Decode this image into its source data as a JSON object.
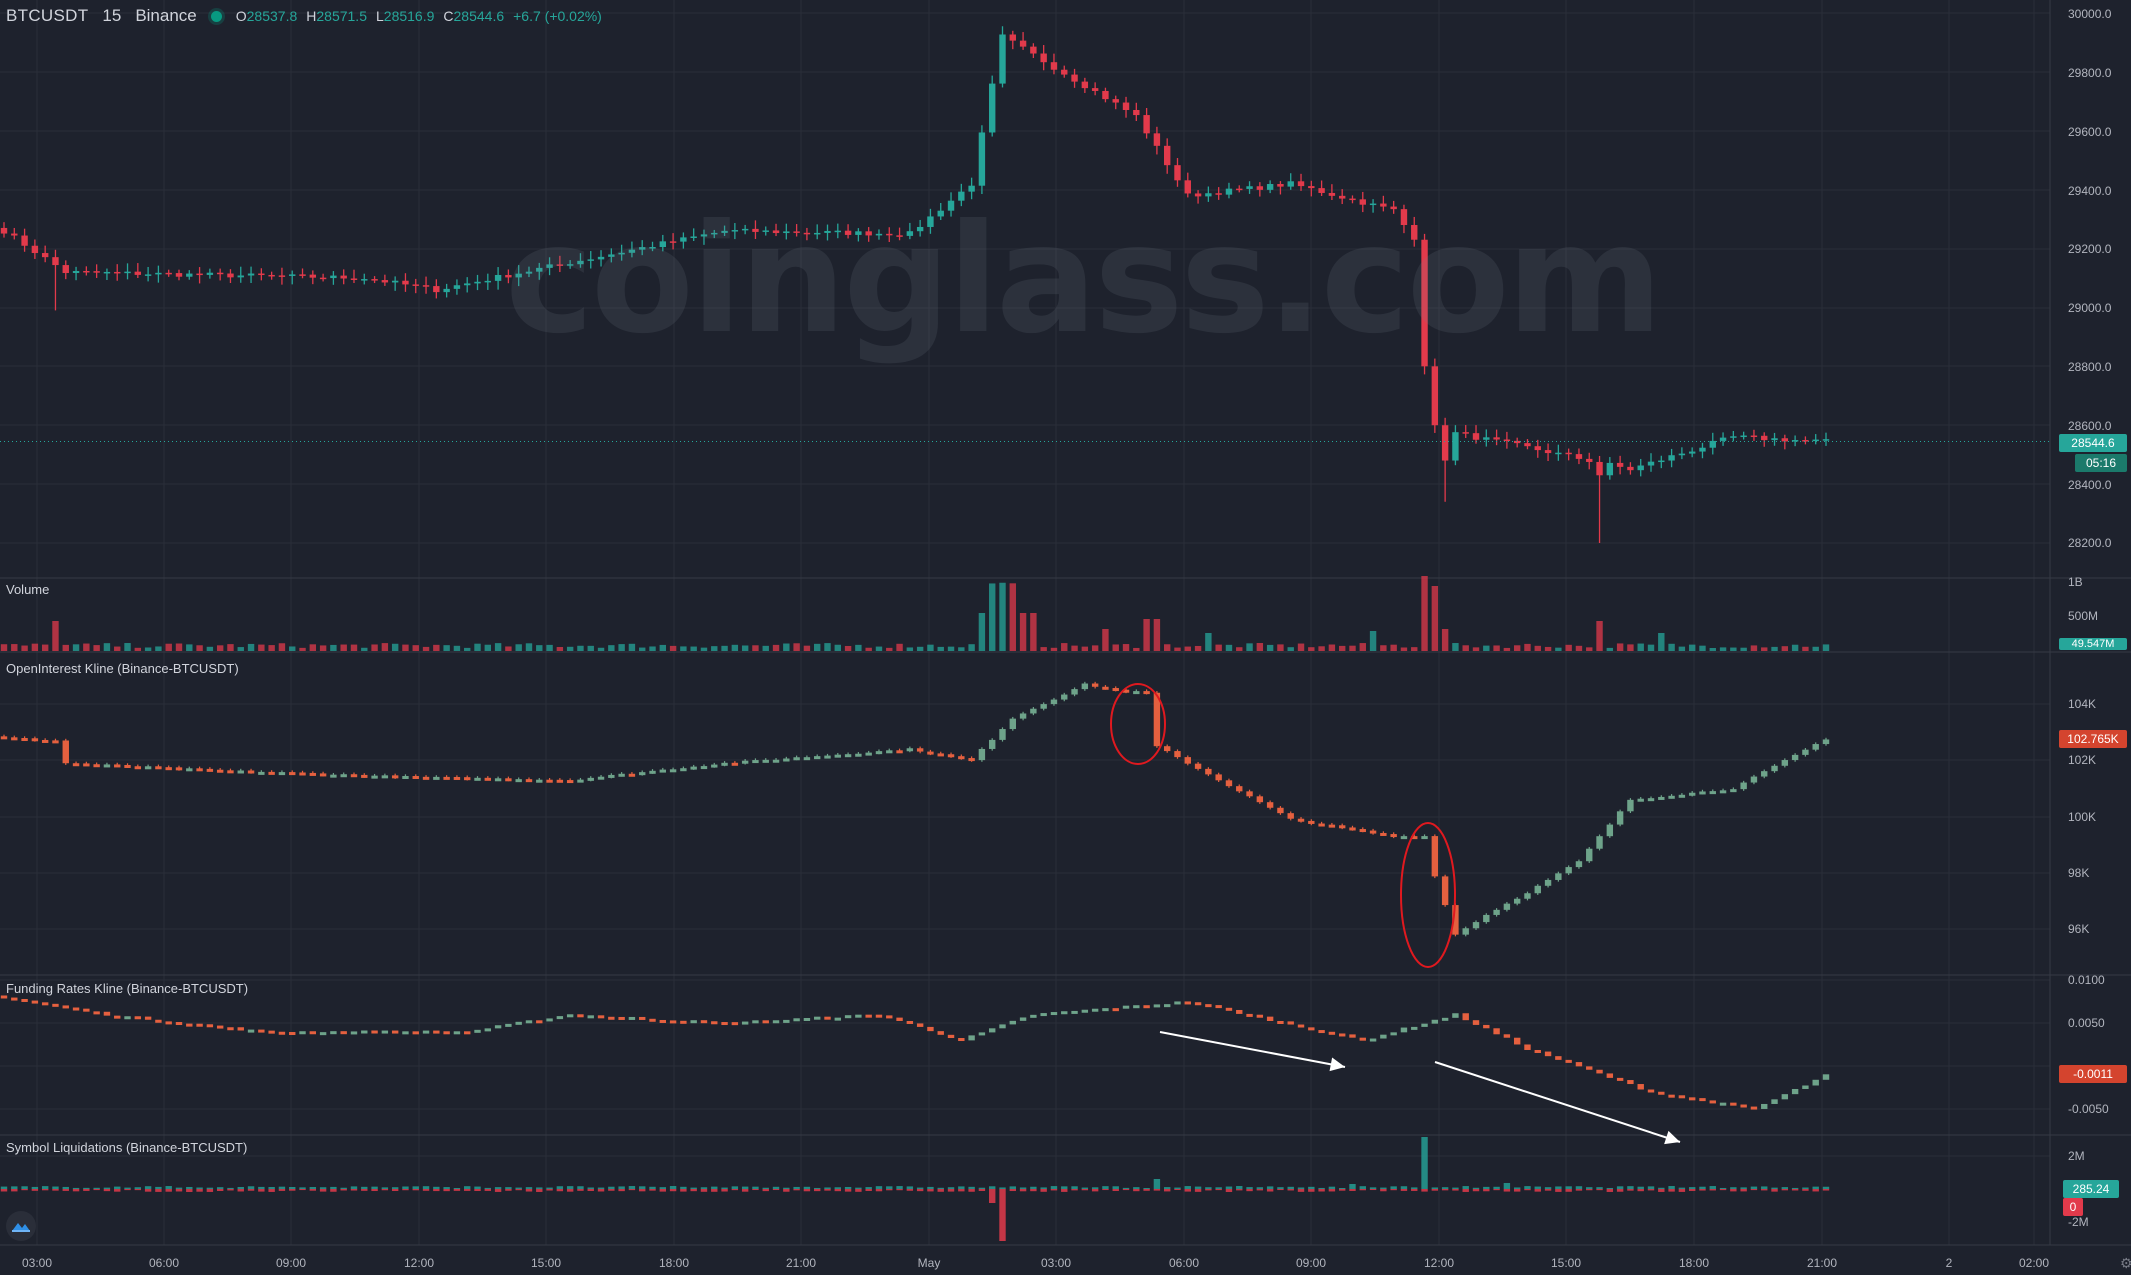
{
  "header": {
    "symbol": "BTCUSDT",
    "interval": "15",
    "exchange": "Binance",
    "open_label": "O",
    "open_value": "28537.8",
    "high_label": "H",
    "high_value": "28571.5",
    "low_label": "L",
    "low_value": "28516.9",
    "close_label": "C",
    "close_value": "28544.6",
    "change": "+6.7 (+0.02%)"
  },
  "watermark": "coinglass.com",
  "panes": {
    "volume_title": "Volume",
    "oi_title": "OpenInterest Kline (Binance-BTCUSDT)",
    "funding_title": "Funding Rates Kline (Binance-BTCUSDT)",
    "liq_title": "Symbol Liquidations (Binance-BTCUSDT)"
  },
  "price_axis": {
    "price": [
      "30000.0",
      "29800.0",
      "29600.0",
      "29400.0",
      "29200.0",
      "29000.0",
      "28800.0",
      "28600.0",
      "28400.0",
      "28200.0"
    ],
    "volume": [
      "1B",
      "500M"
    ],
    "oi": [
      "104K",
      "102K",
      "100K",
      "98K",
      "96K"
    ],
    "funding": [
      "0.0100",
      "0.0050",
      "0.0000",
      "-0.0050"
    ],
    "liq": [
      "2M",
      "-2M"
    ]
  },
  "tags": {
    "last_price": "28544.6",
    "countdown": "05:16",
    "last_volume": "49.547M",
    "oi_last": "102.765K",
    "funding_last": "-0.0011",
    "liq_long": "285.24",
    "liq_short": "0"
  },
  "time_axis": [
    "03:00",
    "06:00",
    "09:00",
    "12:00",
    "15:00",
    "18:00",
    "21:00",
    "May",
    "03:00",
    "06:00",
    "09:00",
    "12:00",
    "15:00",
    "18:00",
    "21:00",
    "2",
    "02:00"
  ],
  "colors": {
    "up": "#26a69a",
    "down": "#e23a4b",
    "oi_up": "#6ea38a",
    "oi_down": "#e5603f",
    "background": "#1e222d",
    "grid": "#2a2e39"
  },
  "icons": {
    "logo": "coinglass-logo-icon",
    "settings": "gear-icon"
  },
  "chart_data": [
    {
      "type": "candlestick",
      "title": "BTCUSDT 15 Binance",
      "ylim": [
        28200,
        30000
      ],
      "key_points": {
        "mid_range_start": 29250,
        "rally_high": 29950,
        "drop_low": 28350,
        "spike_low": 28200,
        "last": 28544.6
      }
    },
    {
      "type": "bar",
      "title": "Volume",
      "ticks": [
        "500M",
        "1B"
      ]
    },
    {
      "type": "candlestick",
      "title": "OpenInterest Kline (Binance-BTCUSDT)",
      "ylim": [
        96000,
        104000
      ],
      "last": 102765
    },
    {
      "type": "candlestick",
      "title": "Funding Rates Kline (Binance-BTCUSDT)",
      "ylim": [
        -0.005,
        0.01
      ],
      "last": -0.0011
    },
    {
      "type": "bar",
      "title": "Symbol Liquidations (Binance-BTCUSDT)",
      "ticks": [
        "2M",
        "-2M"
      ],
      "last_long": 285.24,
      "last_short": 0
    }
  ]
}
